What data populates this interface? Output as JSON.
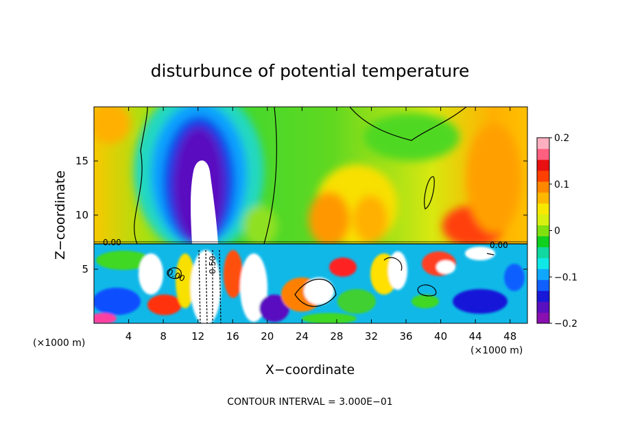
{
  "chart_data": {
    "type": "heatmap",
    "title": "disturbunce of potential temperature",
    "xlabel": "X−coordinate",
    "ylabel": "Z−coordinate",
    "x_unit_left": "(×1000 m)",
    "x_unit_right": "(×1000 m)",
    "xlim": [
      0,
      50
    ],
    "ylim": [
      0,
      20
    ],
    "x_ticks": [
      4,
      8,
      12,
      16,
      20,
      24,
      28,
      32,
      36,
      40,
      44,
      48
    ],
    "y_ticks": [
      5,
      10,
      15
    ],
    "colorbar": {
      "range": [
        -0.2,
        0.2
      ],
      "tick_labels": [
        "0.2",
        "0.1",
        "0",
        "−0.1",
        "−0.2"
      ],
      "colors": [
        "#8a0fb0",
        "#5a10c0",
        "#1818d8",
        "#1060ff",
        "#10a8ff",
        "#10e8e8",
        "#10d8a0",
        "#10d020",
        "#80e010",
        "#d8f010",
        "#f8e800",
        "#ffb800",
        "#ff8800",
        "#ff4000",
        "#e81010",
        "#ff6080",
        "#ffb0c0"
      ]
    },
    "contour_labels": [
      "0.00",
      "0.50",
      "0.00",
      "0.00"
    ],
    "contour_interval_text": "CONTOUR INTERVAL = 3.000E−01"
  }
}
